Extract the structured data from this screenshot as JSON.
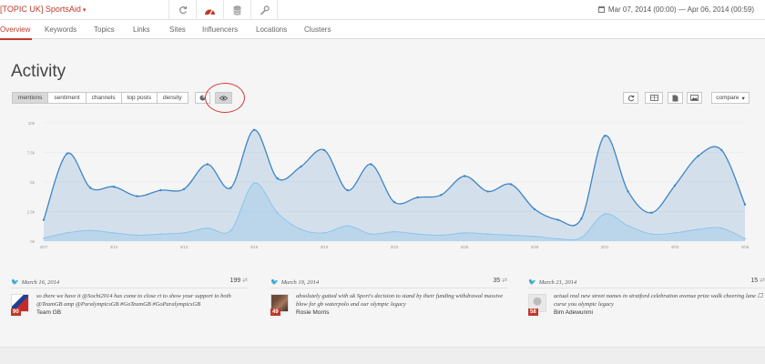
{
  "topbar": {
    "topic": "[TOPIC UK] SportsAid",
    "caret": "▾",
    "daterange": "Mar 07, 2014 (00:00) — Apr 06, 2014 (00:59)",
    "icons": [
      "refresh-icon",
      "speedometer-icon",
      "database-icon",
      "wrench-icon"
    ]
  },
  "subnav": {
    "items": [
      "Overview",
      "Keywords",
      "Topics",
      "Links",
      "Sites",
      "Influencers",
      "Locations",
      "Clusters"
    ],
    "active": "Overview"
  },
  "page": {
    "title": "Activity"
  },
  "tabs": [
    "mentions",
    "sentiment",
    "channels",
    "top posts",
    "density"
  ],
  "active_tab": "mentions",
  "view_buttons": [
    "pie-icon",
    "eye-icon"
  ],
  "right_buttons": {
    "compare_label": "compare",
    "icons": [
      "refresh-icon",
      "table-icon",
      "document-icon",
      "image-icon"
    ]
  },
  "chart_data": {
    "type": "area",
    "x": [
      "03/07",
      "03/08",
      "03/09",
      "03/10",
      "03/11",
      "03/12",
      "03/13",
      "03/14",
      "03/15",
      "03/16",
      "03/17",
      "03/18",
      "03/19",
      "03/20",
      "03/21",
      "03/22",
      "03/23",
      "03/24",
      "03/25",
      "03/26",
      "03/27",
      "03/28",
      "03/29",
      "03/30",
      "03/31",
      "04/01",
      "04/02",
      "04/03",
      "04/04",
      "04/05",
      "04/06"
    ],
    "x_ticks": [
      "3/07",
      "3/10",
      "3/13",
      "3/16",
      "3/19",
      "3/22",
      "3/25",
      "3/28",
      "3/31",
      "4/03",
      "4/06"
    ],
    "y_ticks": [
      "0k",
      "2.5k",
      "5k",
      "7.5k",
      "10k"
    ],
    "ylim": [
      0,
      10000
    ],
    "series": [
      {
        "values": [
          1800,
          7400,
          4500,
          4600,
          3800,
          4300,
          4400,
          6500,
          4500,
          9400,
          5300,
          6300,
          7700,
          4300,
          6500,
          3300,
          3700,
          3900,
          5500,
          4200,
          4800,
          2700,
          1800,
          1900,
          8900,
          4200,
          2400,
          4700,
          7200,
          7700,
          3100
        ],
        "color": "#3d85c6"
      },
      {
        "values": [
          250,
          700,
          900,
          700,
          500,
          600,
          700,
          1100,
          900,
          4900,
          2400,
          1000,
          700,
          1300,
          600,
          800,
          600,
          500,
          700,
          600,
          500,
          400,
          200,
          300,
          2300,
          1300,
          600,
          700,
          1000,
          1100,
          200
        ],
        "color": "#8ec4ea"
      }
    ],
    "trailing": [
      {
        "x": "04/06",
        "y": 0
      },
      {
        "x": "04/06",
        "y": 50
      }
    ]
  },
  "posts": [
    {
      "date": "March 16, 2014",
      "count": "199",
      "text": "so there we have it @Sochi2014 has come to close rt to show your support to both @TeamGB amp @ParalympicsGB #GoTeamGB #GoParalympicsGB",
      "author": "Team GB",
      "score": "90"
    },
    {
      "date": "March 19, 2014",
      "count": "35",
      "text": "absolutely gutted with uk Sport's decision to stand by their funding withdrawal massive blow for gb waterpolo and our olympic legacy",
      "author": "Rosie Morris",
      "score": "49"
    },
    {
      "date": "March 21, 2014",
      "count": "15",
      "text": "actual real new street names in stratford celebration avenue prize walk cheering lane ☐ curse you olympic legacy",
      "author": "Bim Adewunmi",
      "score": "58"
    }
  ]
}
